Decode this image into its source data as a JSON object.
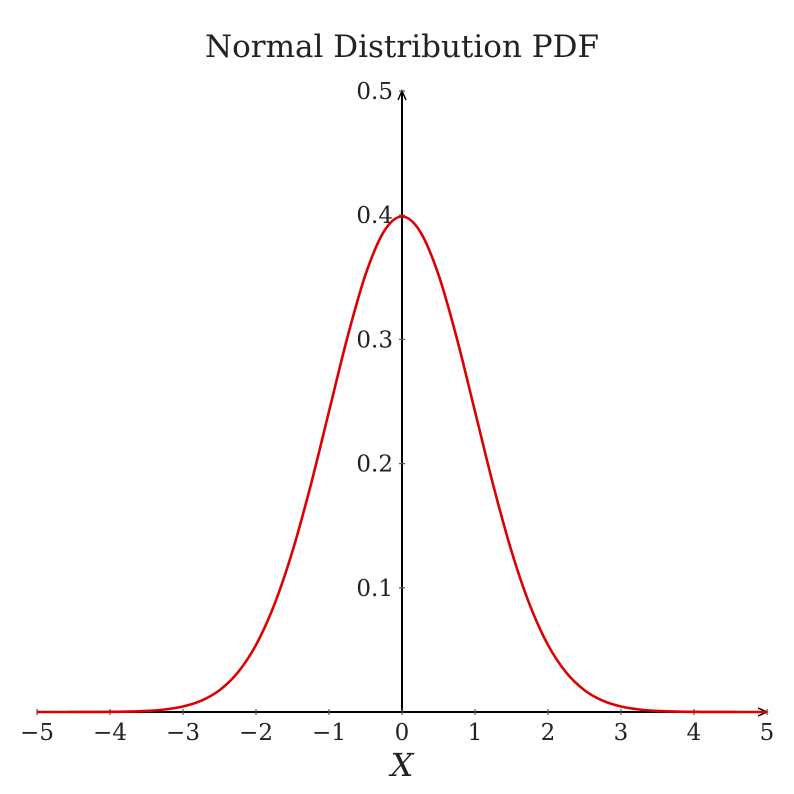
{
  "chart_data": {
    "type": "line",
    "title": "Normal Distribution PDF",
    "xlabel": "X",
    "ylabel": "",
    "xlim": [
      -5,
      5
    ],
    "ylim": [
      0,
      0.5
    ],
    "x_ticks": [
      {
        "value": -5,
        "label": "−5"
      },
      {
        "value": -4,
        "label": "−4"
      },
      {
        "value": -3,
        "label": "−3"
      },
      {
        "value": -2,
        "label": "−2"
      },
      {
        "value": -1,
        "label": "−1"
      },
      {
        "value": 0,
        "label": "0"
      },
      {
        "value": 1,
        "label": "1"
      },
      {
        "value": 2,
        "label": "2"
      },
      {
        "value": 3,
        "label": "3"
      },
      {
        "value": 4,
        "label": "4"
      },
      {
        "value": 5,
        "label": "5"
      }
    ],
    "y_ticks": [
      {
        "value": 0.1,
        "label": "0.1"
      },
      {
        "value": 0.2,
        "label": "0.2"
      },
      {
        "value": 0.3,
        "label": "0.3"
      },
      {
        "value": 0.4,
        "label": "0.4"
      },
      {
        "value": 0.5,
        "label": "0.5"
      }
    ],
    "grid": false,
    "series": [
      {
        "color": "#dd0000",
        "x": [
          -5,
          -4.75,
          -4.5,
          -4.25,
          -4,
          -3.75,
          -3.5,
          -3.25,
          -3,
          -2.75,
          -2.5,
          -2.25,
          -2,
          -1.75,
          -1.5,
          -1.25,
          -1,
          -0.75,
          -0.5,
          -0.25,
          0,
          0.25,
          0.5,
          0.75,
          1,
          1.25,
          1.5,
          1.75,
          2,
          2.25,
          2.5,
          2.75,
          3,
          3.25,
          3.5,
          3.75,
          4,
          4.25,
          4.5,
          4.75,
          5
        ],
        "y": [
          1.5e-06,
          5e-06,
          1.6e-05,
          4.78e-05,
          0.0001338,
          0.0003526,
          0.0008727,
          0.002029,
          0.0044318,
          0.0090936,
          0.0175283,
          0.0317397,
          0.053991,
          0.0862773,
          0.1295176,
          0.1826491,
          0.2419707,
          0.3011374,
          0.3520653,
          0.3866681,
          0.3989423,
          0.3866681,
          0.3520653,
          0.3011374,
          0.2419707,
          0.1826491,
          0.1295176,
          0.0862773,
          0.053991,
          0.0317397,
          0.0175283,
          0.0090936,
          0.0044318,
          0.002029,
          0.0008727,
          0.0003526,
          0.0001338,
          4.78e-05,
          1.6e-05,
          5e-06,
          1.5e-06
        ]
      }
    ]
  }
}
